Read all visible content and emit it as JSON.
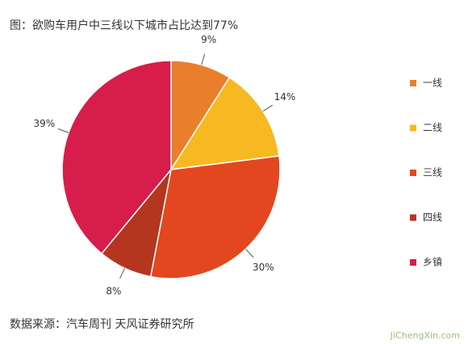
{
  "chart_data": {
    "type": "pie",
    "title": "图：欲购车用户中三线以下城市占比达到77%",
    "categories": [
      "一线",
      "二线",
      "三线",
      "四线",
      "乡镇"
    ],
    "values": [
      9,
      14,
      30,
      8,
      39
    ],
    "value_labels": [
      "9%",
      "14%",
      "30%",
      "8%",
      "39%"
    ],
    "colors": [
      "#ea7f2b",
      "#f7b922",
      "#e3471f",
      "#b5361f",
      "#d71d4b"
    ],
    "legend": "right",
    "source": "数据来源：汽车周刊 天风证券研究所",
    "watermark": "JiChengXin.com"
  }
}
